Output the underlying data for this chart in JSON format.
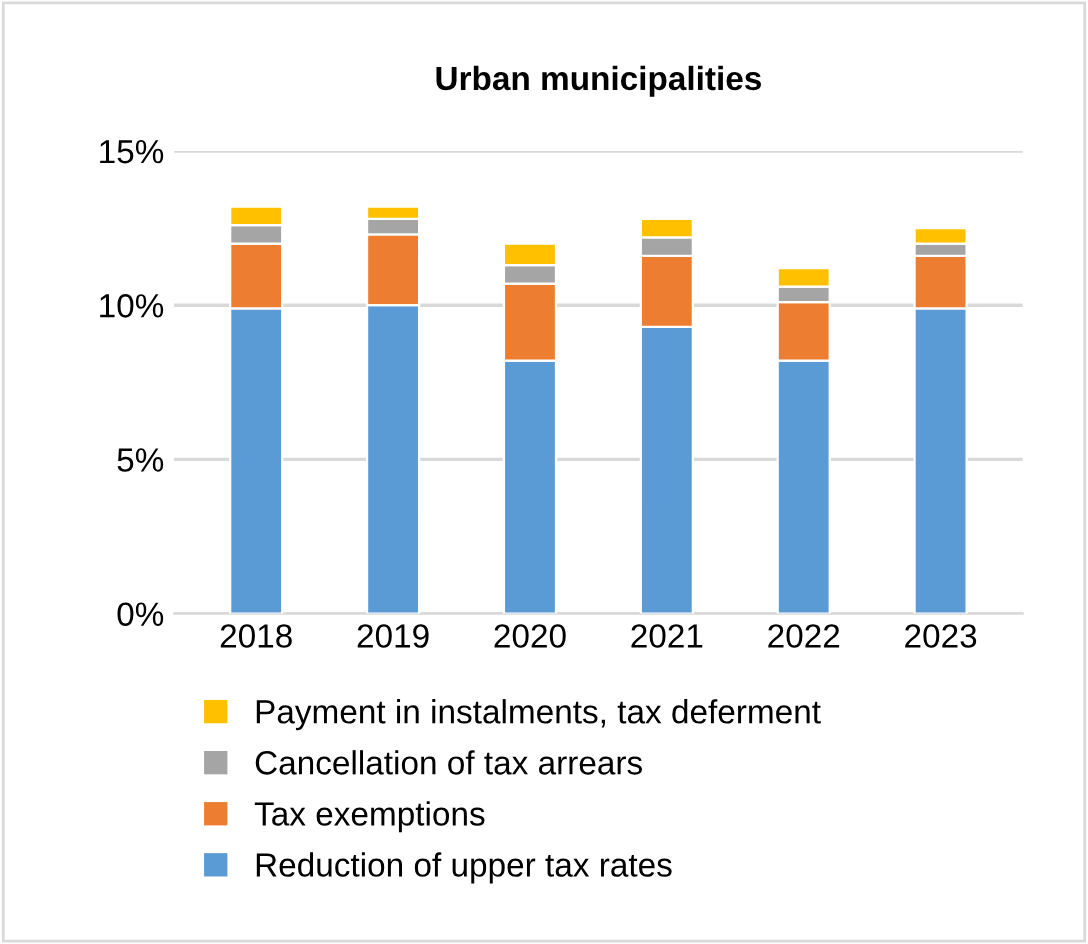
{
  "chart_data": {
    "type": "bar",
    "title": "Urban municipalities",
    "stacked": true,
    "categories": [
      "2018",
      "2019",
      "2020",
      "2021",
      "2022",
      "2023"
    ],
    "series": [
      {
        "name": "Reduction of upper tax rates",
        "color": "#5b9bd5",
        "values": [
          9.9,
          10.0,
          8.2,
          9.3,
          8.2,
          9.9
        ]
      },
      {
        "name": "Tax exemptions",
        "color": "#ed7d31",
        "values": [
          2.1,
          2.3,
          2.5,
          2.3,
          1.9,
          1.7
        ]
      },
      {
        "name": "Cancellation of tax arrears",
        "color": "#a5a5a5",
        "values": [
          0.6,
          0.5,
          0.6,
          0.6,
          0.5,
          0.4
        ]
      },
      {
        "name": "Payment in instalments, tax deferment",
        "color": "#ffc000",
        "values": [
          0.6,
          0.4,
          0.7,
          0.6,
          0.6,
          0.5
        ]
      }
    ],
    "ylim": [
      0,
      15
    ],
    "yticks": [
      {
        "value": 0,
        "label": "0%"
      },
      {
        "value": 5,
        "label": "5%"
      },
      {
        "value": 10,
        "label": "10%"
      },
      {
        "value": 15,
        "label": "15%"
      }
    ],
    "grid": "y",
    "legend": "bottom"
  }
}
